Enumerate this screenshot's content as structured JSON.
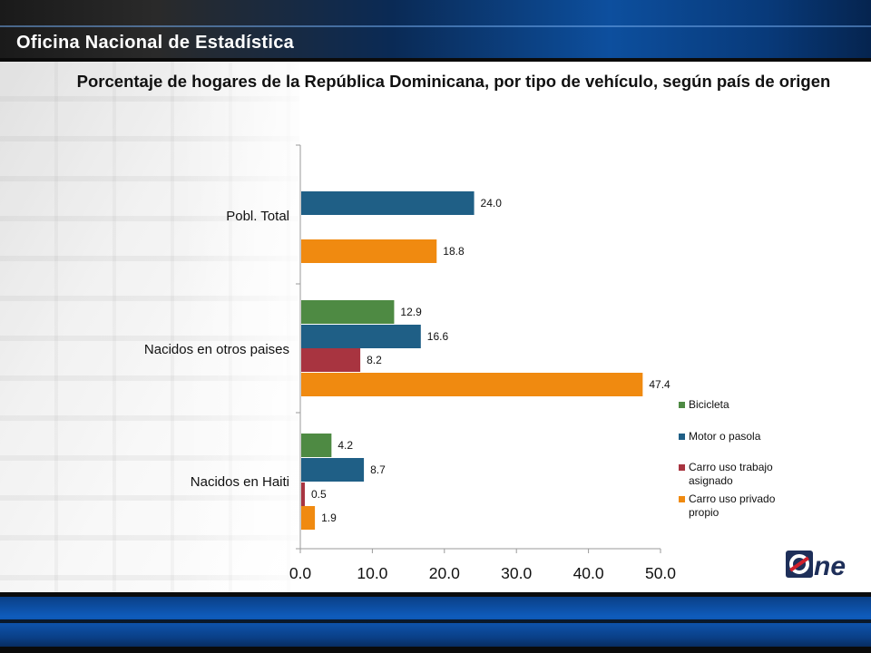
{
  "header": {
    "org_title": "Oficina Nacional de Estadística"
  },
  "logo": {
    "text": "ne",
    "colors": {
      "dark": "#1e2f59",
      "red": "#d01f2b"
    }
  },
  "chart_data": {
    "type": "bar",
    "orientation": "horizontal",
    "title": "Porcentaje de hogares de la República Dominicana, por tipo de vehículo, según país de origen",
    "xlabel": "",
    "ylabel": "",
    "xlim": [
      0,
      50
    ],
    "xticks": [
      "0.0",
      "10.0",
      "20.0",
      "30.0",
      "40.0",
      "50.0"
    ],
    "grid": false,
    "legend_position": "right",
    "categories": [
      "Pobl. Total",
      "Nacidos en otros paises",
      "Nacidos en Haiti"
    ],
    "series": [
      {
        "name": "Bicicleta",
        "color": "#4e8a43",
        "values": [
          null,
          12.9,
          4.2
        ],
        "labels": [
          "",
          "12.9",
          "4.2"
        ]
      },
      {
        "name": "Motor o pasola",
        "color": "#1f5f86",
        "values": [
          24.0,
          16.6,
          8.7
        ],
        "labels": [
          "24.0",
          "16.6",
          "8.7"
        ]
      },
      {
        "name": "Carro uso trabajo asignado",
        "color": "#a83440",
        "values": [
          null,
          8.2,
          0.5
        ],
        "labels": [
          "",
          "8.2",
          "0.5"
        ]
      },
      {
        "name": "Carro uso privado propio",
        "color": "#f08a10",
        "values": [
          18.8,
          47.4,
          1.9
        ],
        "labels": [
          "18.8",
          "47.4",
          "1.9"
        ]
      }
    ]
  }
}
